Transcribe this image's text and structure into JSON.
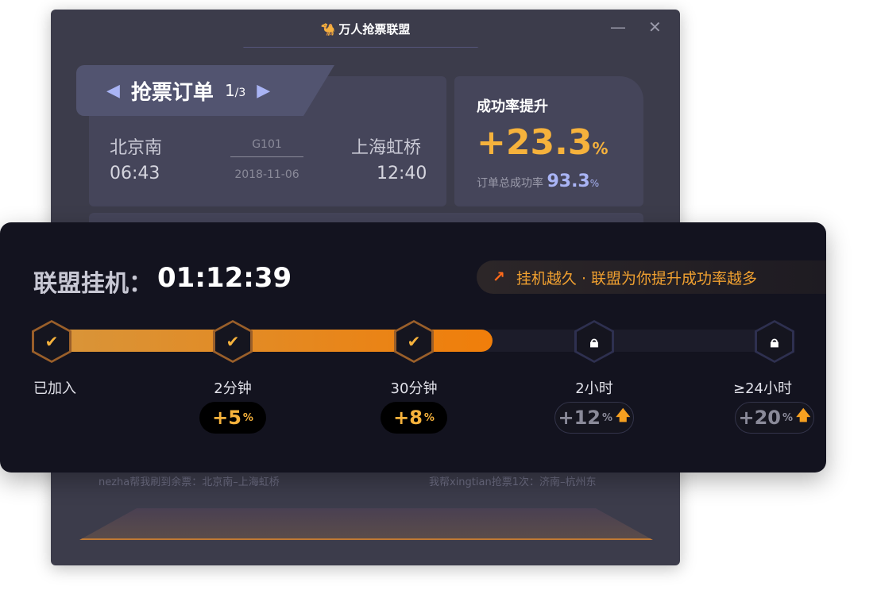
{
  "window": {
    "title": "万人抢票联盟",
    "minimize": "—",
    "close": "✕"
  },
  "order": {
    "tab_label": "抢票订单",
    "page_current": "1",
    "page_total": "/3",
    "from_station": "北京南",
    "from_time": "06:43",
    "to_station": "上海虹桥",
    "to_time": "12:40",
    "train": "G101",
    "date": "2018-11-06"
  },
  "rate": {
    "title": "成功率提升",
    "value": "+23.3",
    "unit": "%",
    "total_label": "订单总成功率",
    "total_value": "93.3",
    "total_unit": "%"
  },
  "feed": [
    "nezha帮我刷到余票：北京南–上海虹桥",
    "我帮xingtian抢票1次：济南–杭州东"
  ],
  "hang": {
    "label": "联盟挂机：",
    "time": "01:12:39",
    "tip": "挂机越久 · 联盟为你提升成功率越多",
    "progress_percent": 61
  },
  "milestones": [
    {
      "label": "已加入",
      "status": "done",
      "bonus": ""
    },
    {
      "label": "2分钟",
      "status": "done",
      "bonus": "+5"
    },
    {
      "label": "30分钟",
      "status": "done",
      "bonus": "+8"
    },
    {
      "label": "2小时",
      "status": "locked",
      "bonus": "+12"
    },
    {
      "label": "≥24小时",
      "status": "locked",
      "bonus": "+20"
    }
  ],
  "units": {
    "percent": "%"
  },
  "colors": {
    "accent": "#f6b23c",
    "lavender": "#a9b4f5",
    "panel": "#13131f",
    "window": "#3c3c4b"
  }
}
